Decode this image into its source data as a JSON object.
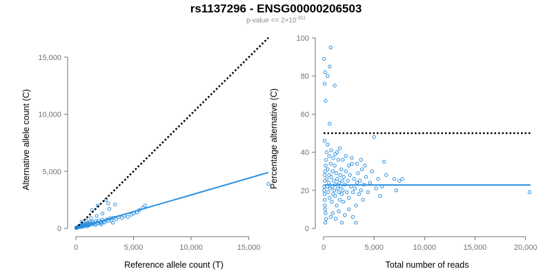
{
  "title": "rs1137296 - ENSG00000206503",
  "subtitle": {
    "text": "p-value <= 2×10",
    "exponent": "-311"
  },
  "colors": {
    "points": "#2a8fe0",
    "fit_line": "#2a8fe0",
    "reference_line": "#000000",
    "axis": "#707070"
  },
  "chart_data": [
    {
      "type": "scatter",
      "xlabel": "Reference allele count (T)",
      "ylabel": "Alternative allele count (C)",
      "xlim": [
        0,
        17000
      ],
      "ylim": [
        0,
        16500
      ],
      "xticks": [
        0,
        5000,
        10000,
        15000
      ],
      "xtick_labels": [
        "0",
        "5,000",
        "10,000",
        "15,000"
      ],
      "yticks": [
        0,
        5000,
        10000,
        15000
      ],
      "ytick_labels": [
        "0",
        "5,000",
        "10,000",
        "15,000"
      ],
      "grid": false,
      "points": [
        [
          20,
          30
        ],
        [
          60,
          80
        ],
        [
          100,
          50
        ],
        [
          150,
          120
        ],
        [
          200,
          90
        ],
        [
          250,
          200
        ],
        [
          300,
          150
        ],
        [
          350,
          250
        ],
        [
          400,
          180
        ],
        [
          450,
          120
        ],
        [
          500,
          300
        ],
        [
          550,
          220
        ],
        [
          600,
          160
        ],
        [
          650,
          350
        ],
        [
          700,
          280
        ],
        [
          750,
          200
        ],
        [
          800,
          400
        ],
        [
          850,
          300
        ],
        [
          900,
          250
        ],
        [
          950,
          450
        ],
        [
          1000,
          320
        ],
        [
          1050,
          280
        ],
        [
          1100,
          500
        ],
        [
          1150,
          380
        ],
        [
          1200,
          300
        ],
        [
          1250,
          550
        ],
        [
          1300,
          420
        ],
        [
          1400,
          350
        ],
        [
          1450,
          600
        ],
        [
          1500,
          450
        ],
        [
          1600,
          400
        ],
        [
          1700,
          650
        ],
        [
          1800,
          500
        ],
        [
          1900,
          450
        ],
        [
          2000,
          700
        ],
        [
          2100,
          550
        ],
        [
          2200,
          480
        ],
        [
          2300,
          750
        ],
        [
          2400,
          600
        ],
        [
          2500,
          520
        ],
        [
          2700,
          800
        ],
        [
          2800,
          650
        ],
        [
          3000,
          900
        ],
        [
          3100,
          700
        ],
        [
          3300,
          950
        ],
        [
          3500,
          800
        ],
        [
          3700,
          1000
        ],
        [
          4000,
          900
        ],
        [
          4200,
          1100
        ],
        [
          4500,
          1000
        ],
        [
          4800,
          1200
        ],
        [
          5000,
          1300
        ],
        [
          5300,
          1400
        ],
        [
          5500,
          1600
        ],
        [
          5800,
          1800
        ],
        [
          6000,
          2000
        ],
        [
          3400,
          2100
        ],
        [
          2900,
          1700
        ],
        [
          2300,
          1300
        ],
        [
          1800,
          1100
        ],
        [
          1300,
          900
        ],
        [
          900,
          700
        ],
        [
          500,
          600
        ],
        [
          2600,
          2500
        ],
        [
          1900,
          2000
        ],
        [
          1400,
          1600
        ],
        [
          2800,
          2200
        ],
        [
          600,
          150
        ],
        [
          1000,
          180
        ],
        [
          1700,
          300
        ],
        [
          2200,
          350
        ],
        [
          3200,
          500
        ],
        [
          16700,
          3900
        ]
      ],
      "fit_line": {
        "x": [
          0,
          16700
        ],
        "y": [
          0,
          4900
        ],
        "style": "solid"
      },
      "reference_line": {
        "x": [
          0,
          16700
        ],
        "y": [
          0,
          16700
        ],
        "style": "dotted"
      }
    },
    {
      "type": "scatter",
      "xlabel": "Total number of reads",
      "ylabel": "Percentage alternative (C)",
      "xlim": [
        0,
        20500
      ],
      "ylim": [
        0,
        100
      ],
      "xticks": [
        0,
        5000,
        10000,
        15000,
        20000
      ],
      "xtick_labels": [
        "0",
        "5,000",
        "10,000",
        "15,000",
        "20,000"
      ],
      "yticks": [
        0,
        20,
        40,
        60,
        80,
        100
      ],
      "ytick_labels": [
        "0",
        "20",
        "40",
        "60",
        "80",
        "100"
      ],
      "grid": false,
      "points": [
        [
          50,
          89
        ],
        [
          100,
          76
        ],
        [
          150,
          82
        ],
        [
          200,
          67
        ],
        [
          700,
          95
        ],
        [
          600,
          85
        ],
        [
          400,
          80
        ],
        [
          1100,
          75
        ],
        [
          600,
          55
        ],
        [
          100,
          46
        ],
        [
          300,
          40
        ],
        [
          250,
          36
        ],
        [
          200,
          33
        ],
        [
          150,
          30
        ],
        [
          100,
          28
        ],
        [
          120,
          25
        ],
        [
          80,
          22
        ],
        [
          60,
          20
        ],
        [
          90,
          18
        ],
        [
          110,
          15
        ],
        [
          130,
          12
        ],
        [
          150,
          10
        ],
        [
          200,
          8
        ],
        [
          250,
          5
        ],
        [
          180,
          3
        ],
        [
          300,
          26
        ],
        [
          350,
          22
        ],
        [
          400,
          31
        ],
        [
          450,
          19
        ],
        [
          500,
          24
        ],
        [
          550,
          28
        ],
        [
          600,
          16
        ],
        [
          650,
          21
        ],
        [
          700,
          34
        ],
        [
          750,
          27
        ],
        [
          800,
          14
        ],
        [
          850,
          22
        ],
        [
          900,
          30
        ],
        [
          950,
          18
        ],
        [
          1000,
          25
        ],
        [
          1050,
          20
        ],
        [
          1100,
          33
        ],
        [
          1150,
          17
        ],
        [
          1200,
          23
        ],
        [
          1250,
          29
        ],
        [
          1300,
          12
        ],
        [
          1350,
          26
        ],
        [
          1400,
          21
        ],
        [
          1450,
          36
        ],
        [
          1500,
          19
        ],
        [
          1550,
          24
        ],
        [
          1600,
          15
        ],
        [
          1650,
          28
        ],
        [
          1700,
          22
        ],
        [
          1750,
          31
        ],
        [
          1800,
          18
        ],
        [
          1850,
          25
        ],
        [
          1900,
          20
        ],
        [
          1950,
          14
        ],
        [
          2000,
          27
        ],
        [
          2100,
          23
        ],
        [
          2200,
          30
        ],
        [
          2300,
          19
        ],
        [
          2400,
          25
        ],
        [
          2500,
          16
        ],
        [
          2600,
          28
        ],
        [
          2700,
          22
        ],
        [
          2800,
          34
        ],
        [
          2900,
          19
        ],
        [
          3000,
          26
        ],
        [
          3100,
          21
        ],
        [
          3200,
          12
        ],
        [
          3300,
          24
        ],
        [
          3400,
          29
        ],
        [
          3500,
          18
        ],
        [
          3600,
          25
        ],
        [
          3700,
          20
        ],
        [
          3800,
          31
        ],
        [
          3900,
          15
        ],
        [
          4000,
          23
        ],
        [
          4200,
          27
        ],
        [
          4400,
          19
        ],
        [
          4600,
          24
        ],
        [
          4800,
          30
        ],
        [
          5000,
          48
        ],
        [
          5200,
          21
        ],
        [
          5400,
          26
        ],
        [
          5600,
          17
        ],
        [
          5800,
          22
        ],
        [
          6000,
          35
        ],
        [
          6200,
          28
        ],
        [
          7000,
          26
        ],
        [
          7200,
          20
        ],
        [
          7500,
          25
        ],
        [
          7800,
          26
        ],
        [
          400,
          44
        ],
        [
          550,
          38
        ],
        [
          750,
          41
        ],
        [
          950,
          37
        ],
        [
          1150,
          39
        ],
        [
          1350,
          40
        ],
        [
          1600,
          42
        ],
        [
          1900,
          36
        ],
        [
          2200,
          38
        ],
        [
          2500,
          33
        ],
        [
          2800,
          37
        ],
        [
          3300,
          34
        ],
        [
          3700,
          36
        ],
        [
          4100,
          33
        ],
        [
          700,
          6
        ],
        [
          900,
          8
        ],
        [
          1200,
          5
        ],
        [
          1500,
          9
        ],
        [
          1800,
          3
        ],
        [
          2100,
          7
        ],
        [
          2500,
          10
        ],
        [
          2900,
          6
        ],
        [
          3200,
          3
        ],
        [
          20400,
          19
        ]
      ],
      "fit_line": {
        "x": [
          0,
          20500
        ],
        "y": [
          22.8,
          22.8
        ],
        "style": "solid"
      },
      "reference_line": {
        "x": [
          0,
          20500
        ],
        "y": [
          50,
          50
        ],
        "style": "dotted"
      }
    }
  ]
}
